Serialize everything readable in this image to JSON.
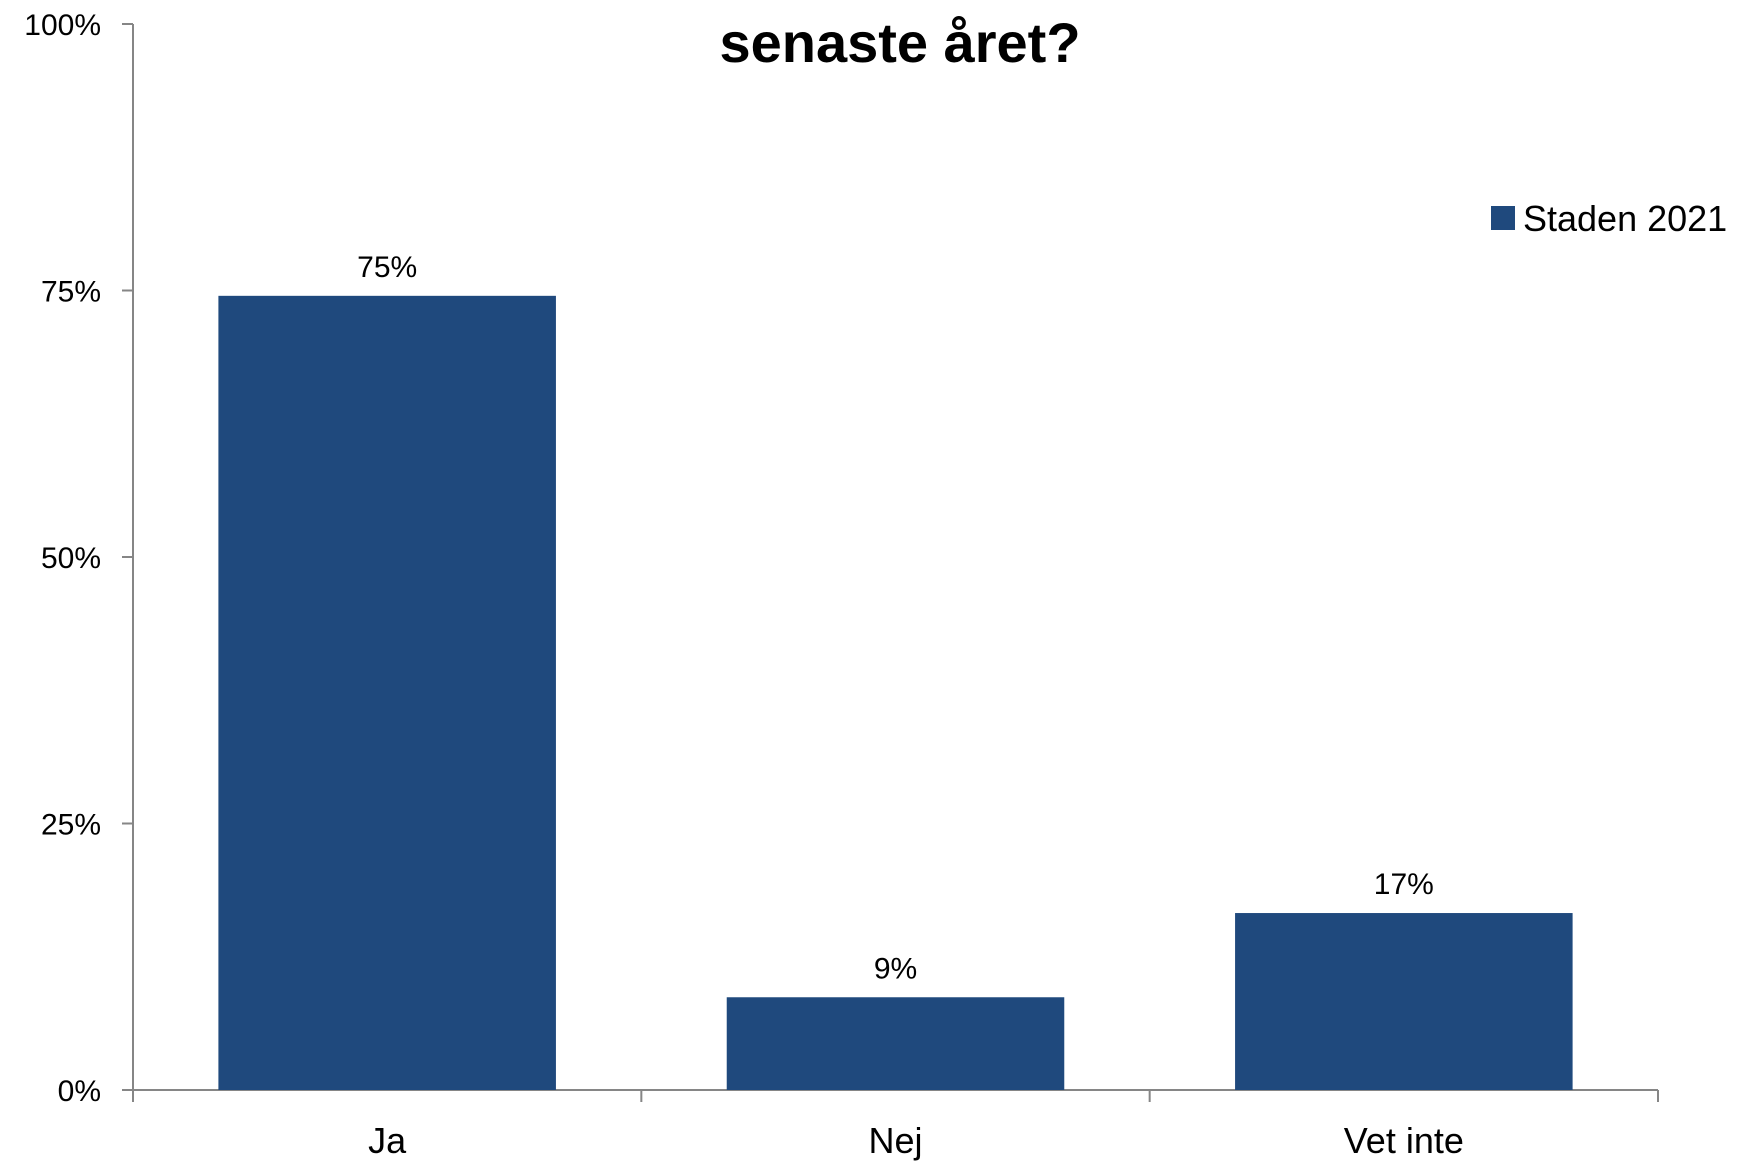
{
  "chart_data": {
    "type": "bar",
    "title": "senaste året?",
    "categories": [
      "Ja",
      "Nej",
      "Vet inte"
    ],
    "series": [
      {
        "name": "Staden 2021",
        "values": [
          74.5,
          8.7,
          16.6
        ],
        "data_labels": [
          "75%",
          "9%",
          "17%"
        ],
        "color": "#1F497D"
      }
    ],
    "ylim": [
      0,
      100
    ],
    "yticks": [
      0,
      25,
      50,
      75,
      100
    ],
    "ytick_labels": [
      "0%",
      "25%",
      "50%",
      "75%",
      "100%"
    ],
    "grid": false,
    "legend_position": "right"
  }
}
